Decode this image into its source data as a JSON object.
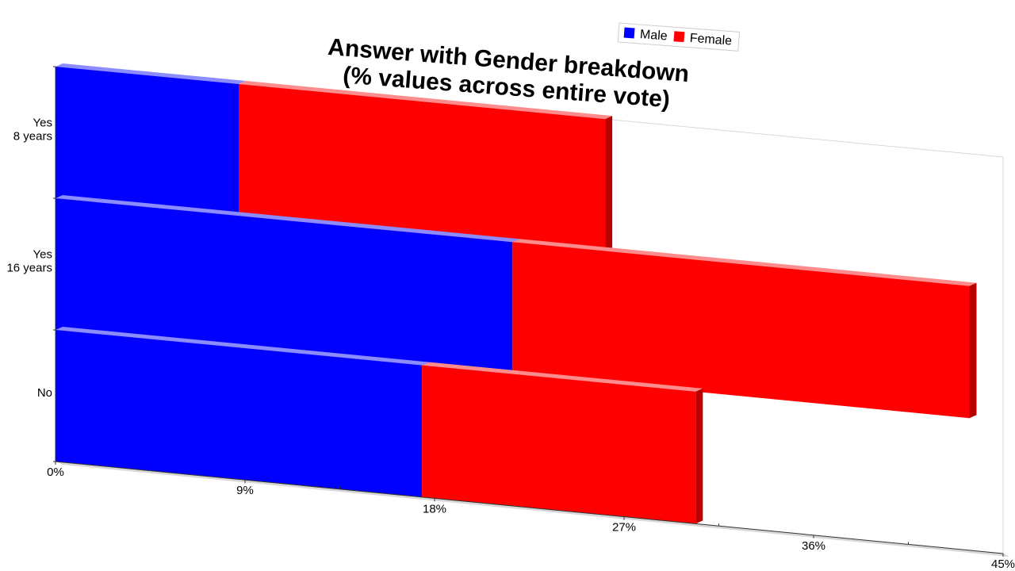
{
  "chart_data": {
    "type": "bar",
    "orientation": "horizontal",
    "stacked": true,
    "title_lines": [
      "Answer with Gender breakdown",
      "(% values across entire vote)"
    ],
    "categories": [
      {
        "lines": [
          "Yes",
          "8 years"
        ]
      },
      {
        "lines": [
          "Yes",
          "16 years"
        ]
      },
      {
        "lines": [
          "No"
        ]
      }
    ],
    "series": [
      {
        "name": "Male",
        "color": "#0000ff",
        "values": [
          8.7,
          21.7,
          17.4
        ]
      },
      {
        "name": "Female",
        "color": "#ff0000",
        "values": [
          17.4,
          21.7,
          13.0
        ]
      }
    ],
    "x_ticks": [
      "0%",
      "9%",
      "18%",
      "27%",
      "36%",
      "45%"
    ],
    "xlim": [
      0,
      45
    ],
    "xlabel": "",
    "ylabel": "",
    "legend_position": "top-right",
    "perspective": "3d"
  }
}
